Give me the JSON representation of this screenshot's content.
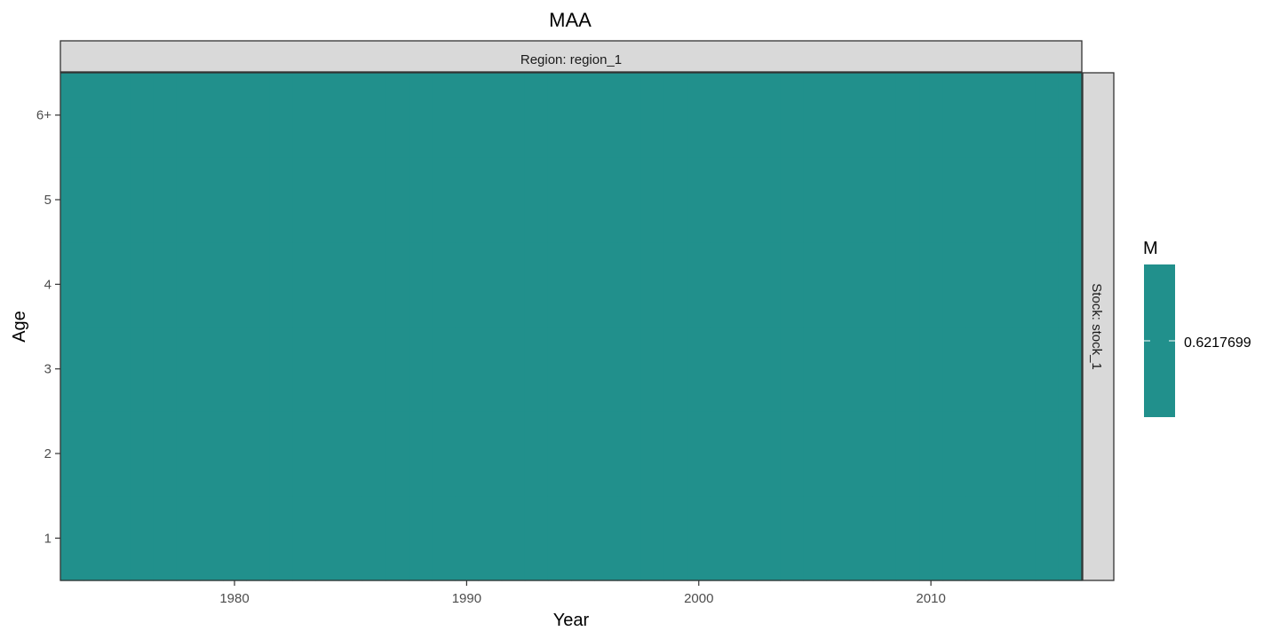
{
  "chart_data": {
    "type": "heatmap",
    "title": "MAA",
    "xlabel": "Year",
    "ylabel": "Age",
    "facet_col_label": "Region: region_1",
    "facet_row_label": "Stock: stock_1",
    "x_ticks": [
      1980,
      1990,
      2000,
      2010
    ],
    "y_ticks": [
      "1",
      "2",
      "3",
      "4",
      "5",
      "6+"
    ],
    "xlim": [
      1972.5,
      2016.5
    ],
    "ylim": [
      0.5,
      6.5
    ],
    "fill_value": 0.6217699,
    "fill_color": "#21908C",
    "legend": {
      "title": "M",
      "labels": [
        "0.6217699"
      ],
      "placement": "right"
    },
    "grid": false
  },
  "colors": {
    "strip_fill": "#d9d9d9",
    "panel_border": "#333333",
    "text": "#000000",
    "tick_text": "#4d4d4d"
  }
}
